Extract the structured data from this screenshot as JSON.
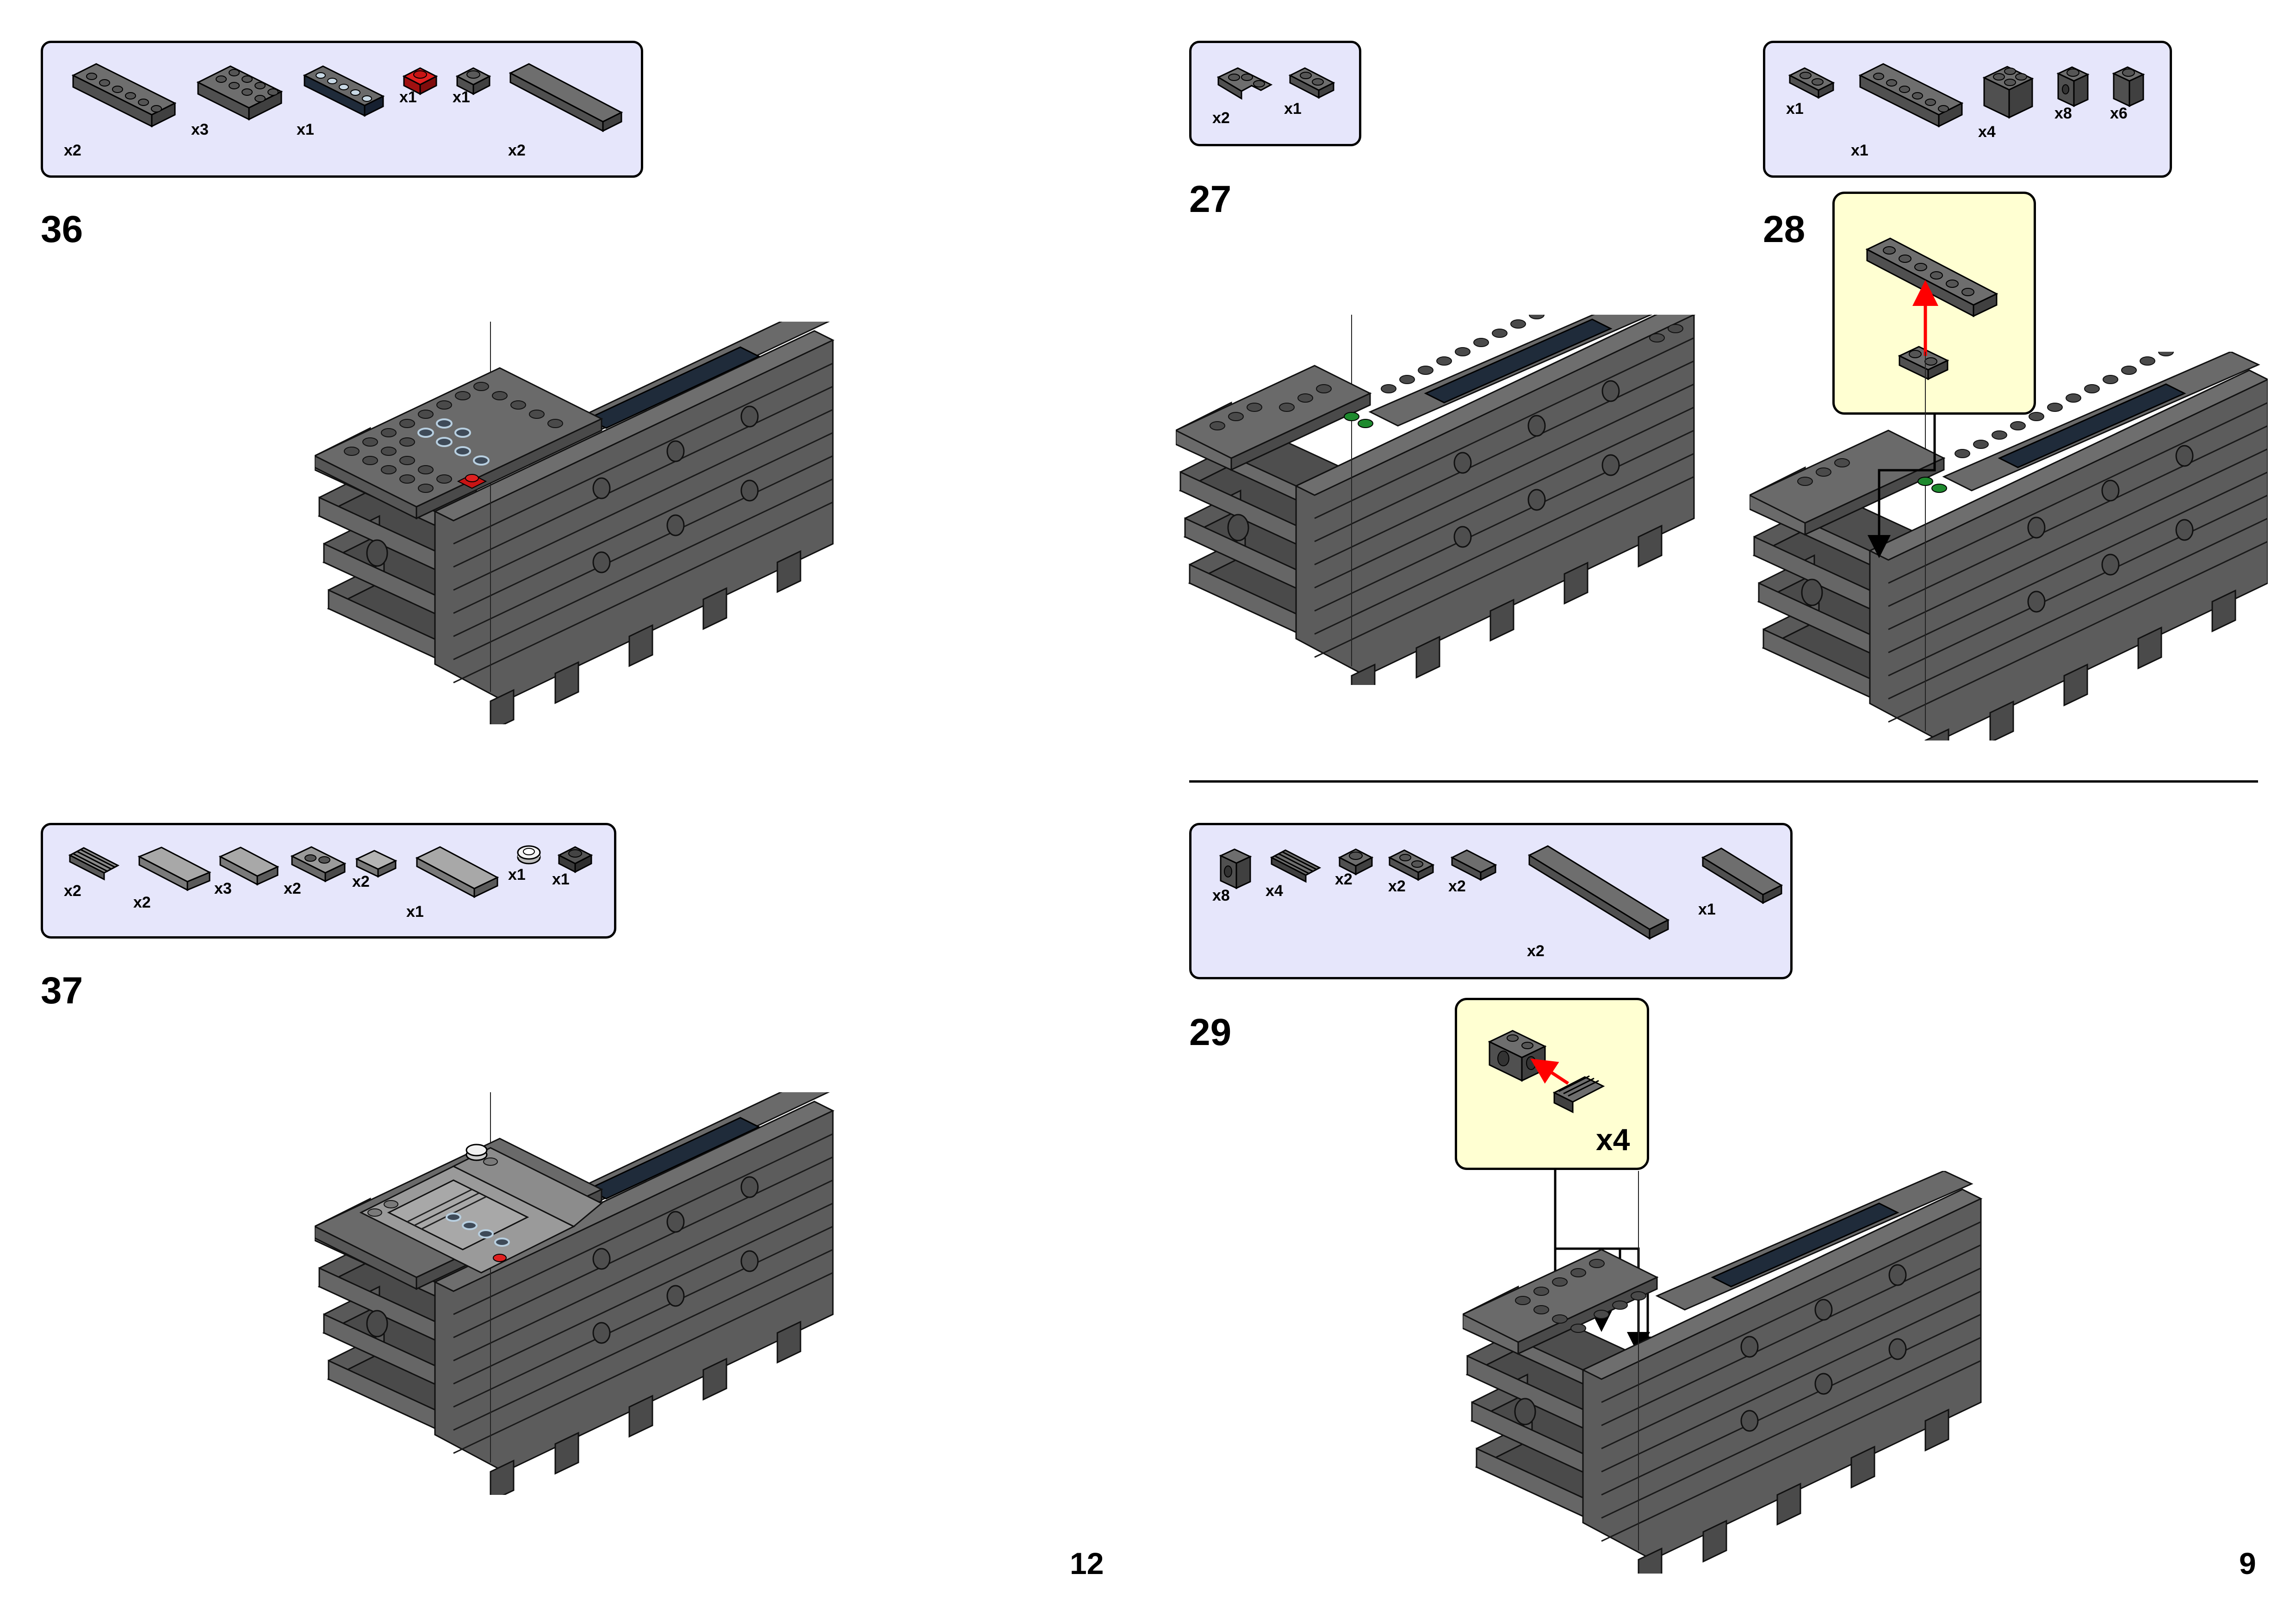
{
  "left_page": {
    "page_number": "12",
    "steps": [
      {
        "number": "36",
        "parts": [
          {
            "icon": "plate-1x6-icon",
            "qty": "x2"
          },
          {
            "icon": "plate-2x4-icon",
            "qty": "x3"
          },
          {
            "icon": "plate-1x6-trans-icon",
            "qty": "x1"
          },
          {
            "icon": "plate-1x1-red-icon",
            "qty": "x1"
          },
          {
            "icon": "plate-1x1-icon",
            "qty": "x1"
          },
          {
            "icon": "tile-1x8-icon",
            "qty": "x2"
          }
        ]
      },
      {
        "number": "37",
        "parts": [
          {
            "icon": "grille-tile-icon",
            "qty": "x2"
          },
          {
            "icon": "tile-2x4-light-icon",
            "qty": "x2"
          },
          {
            "icon": "tile-2x3-light-icon",
            "qty": "x3"
          },
          {
            "icon": "jumper-plate-icon",
            "qty": "x2"
          },
          {
            "icon": "tile-2x2-light-icon",
            "qty": "x2"
          },
          {
            "icon": "tile-2x6-light-icon",
            "qty": "x1"
          },
          {
            "icon": "round-tile-white-icon",
            "qty": "x1"
          },
          {
            "icon": "plate-1x1-dark-icon",
            "qty": "x1"
          }
        ]
      }
    ]
  },
  "right_page": {
    "page_number": "9",
    "steps": [
      {
        "number": "27",
        "parts": [
          {
            "icon": "corner-plate-icon",
            "qty": "x2"
          },
          {
            "icon": "plate-1x2-icon",
            "qty": "x1"
          }
        ]
      },
      {
        "number": "28",
        "parts": [
          {
            "icon": "plate-1x2-icon",
            "qty": "x1"
          },
          {
            "icon": "plate-1x6-icon",
            "qty": "x1"
          },
          {
            "icon": "brick-2x2-icon",
            "qty": "x4"
          },
          {
            "icon": "brick-1x1-icon",
            "qty": "x8"
          },
          {
            "icon": "brick-1x1-tall-icon",
            "qty": "x6"
          }
        ],
        "callout_qty": ""
      },
      {
        "number": "29",
        "parts": [
          {
            "icon": "brick-1x2-technic-icon",
            "qty": "x8"
          },
          {
            "icon": "grille-tile-icon",
            "qty": "x4"
          },
          {
            "icon": "plate-1x1-icon",
            "qty": "x2"
          },
          {
            "icon": "plate-1x2-icon",
            "qty": "x2"
          },
          {
            "icon": "tile-1x2-icon",
            "qty": "x2"
          },
          {
            "icon": "tile-1x10-icon",
            "qty": "x2"
          },
          {
            "icon": "tile-1x4-icon",
            "qty": "x1"
          }
        ],
        "callout_qty": "x4"
      }
    ]
  },
  "colors": {
    "parts_box_bg": "#e6e6fb",
    "callout_bg": "#ffffd2",
    "brick_dark": "#595959",
    "brick_mid": "#6e6e6e",
    "brick_light": "#8a8a8a",
    "trans_black": "#1f2b3a",
    "red": "#c81414",
    "green": "#1e8a2e",
    "arrow_red": "#ff0000"
  }
}
